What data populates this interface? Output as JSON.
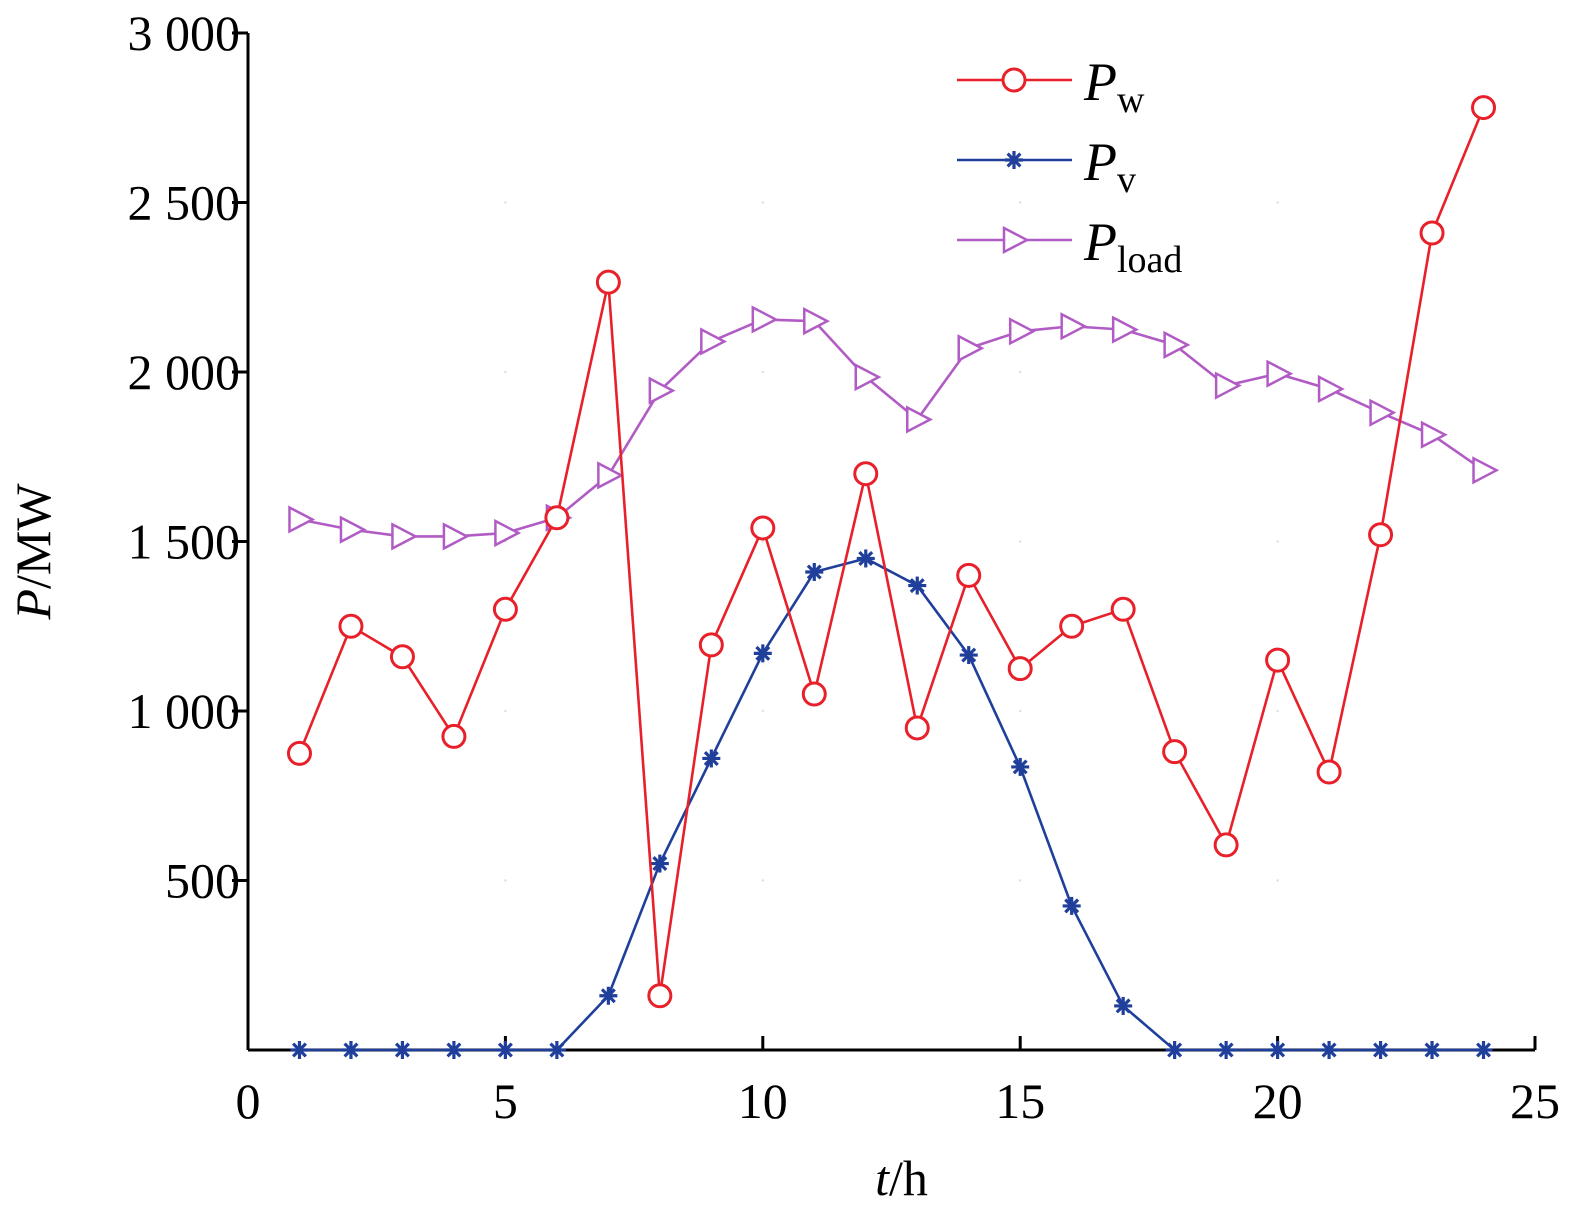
{
  "chart_data": {
    "type": "line",
    "title": "",
    "xlabel": {
      "italic": "t",
      "unit": "/h"
    },
    "ylabel": {
      "italic": "P",
      "unit": "/MW"
    },
    "xlim": [
      0,
      25
    ],
    "ylim": [
      0,
      3000
    ],
    "x_ticks": [
      {
        "value": 0,
        "label": "0"
      },
      {
        "value": 5,
        "label": "5"
      },
      {
        "value": 10,
        "label": "10"
      },
      {
        "value": 15,
        "label": "15"
      },
      {
        "value": 20,
        "label": "20"
      },
      {
        "value": 25,
        "label": "25"
      }
    ],
    "y_ticks": [
      {
        "value": 500,
        "label": "500"
      },
      {
        "value": 1000,
        "label": "1 000"
      },
      {
        "value": 1500,
        "label": "1 500"
      },
      {
        "value": 2000,
        "label": "2 000"
      },
      {
        "value": 2500,
        "label": "2 500"
      },
      {
        "value": 3000,
        "label": "3 000"
      }
    ],
    "grid": false,
    "legend_position": "top-right",
    "x": [
      1,
      2,
      3,
      4,
      5,
      6,
      7,
      8,
      9,
      10,
      11,
      12,
      13,
      14,
      15,
      16,
      17,
      18,
      19,
      20,
      21,
      22,
      23,
      24
    ],
    "series": [
      {
        "key": "w",
        "name": {
          "main": "P",
          "sub": "w"
        },
        "color": "#e8202a",
        "marker": "circle",
        "values": [
          875,
          1250,
          1160,
          925,
          1300,
          1570,
          2265,
          160,
          1195,
          1540,
          1050,
          1700,
          950,
          1400,
          1125,
          1250,
          1300,
          880,
          605,
          1150,
          820,
          1520,
          2410,
          2780
        ]
      },
      {
        "key": "v",
        "name": {
          "main": "P",
          "sub": "v"
        },
        "color": "#1f3f9b",
        "marker": "star",
        "values": [
          0,
          0,
          0,
          0,
          0,
          0,
          160,
          550,
          860,
          1170,
          1410,
          1450,
          1370,
          1165,
          835,
          425,
          130,
          0,
          0,
          0,
          0,
          0,
          0,
          0
        ]
      },
      {
        "key": "load",
        "name": {
          "main": "P",
          "sub": "load"
        },
        "color": "#b05cc4",
        "marker": "triangle-right",
        "values": [
          1565,
          1535,
          1515,
          1515,
          1525,
          1570,
          1695,
          1945,
          2090,
          2155,
          2150,
          1985,
          1860,
          2070,
          2120,
          2135,
          2125,
          2080,
          1960,
          1995,
          1950,
          1880,
          1815,
          1710
        ]
      }
    ]
  }
}
